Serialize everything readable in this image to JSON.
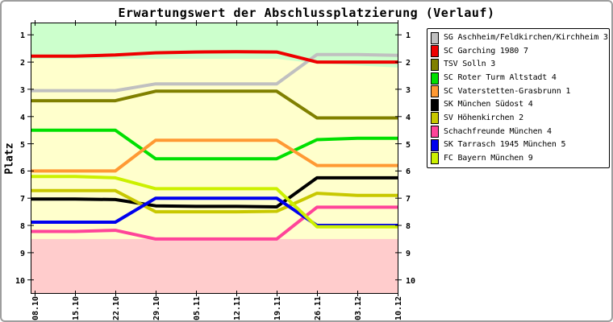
{
  "chart_data": {
    "type": "line",
    "title": "Erwartungswert der Abschlussplatzierung (Verlauf)",
    "ylabel": "Platz",
    "x": [
      "08.10",
      "15.10",
      "22.10",
      "29.10",
      "05.11",
      "12.11",
      "19.11",
      "26.11",
      "03.12",
      "10.12"
    ],
    "y_ticks": [
      1,
      2,
      3,
      4,
      5,
      6,
      7,
      8,
      9,
      10
    ],
    "ylim": [
      0.55,
      10.5
    ],
    "y_axis_inverted": true,
    "y_axis_mirrored_right": true,
    "grid": false,
    "legend_position": "outside-top-right",
    "axis_color": "#000000",
    "bands": {
      "top_zone_color": "#ccffcc",
      "middle_zone_color": "#ffffcc",
      "bottom_zone_color": "#ffcccc",
      "top_zone_lower_edge_by_x": [
        1.88,
        1.88,
        1.88,
        1.88,
        1.88,
        1.88,
        1.88,
        2.05,
        2.12,
        2.2
      ],
      "bottom_zone_upper_edge": 8.5
    },
    "series": [
      {
        "name": "SG Aschheim/Feldkirchen/Kirchheim 3",
        "color": "#c0c0c0",
        "values": [
          3.05,
          3.05,
          3.05,
          2.8,
          2.8,
          2.8,
          2.8,
          1.72,
          1.72,
          1.75
        ]
      },
      {
        "name": "SC Garching 1980 7",
        "color": "#ee0000",
        "values": [
          1.78,
          1.78,
          1.74,
          1.66,
          1.63,
          1.62,
          1.63,
          2.0,
          2.0,
          2.0
        ]
      },
      {
        "name": "TSV Solln 3",
        "color": "#808000",
        "values": [
          3.42,
          3.42,
          3.42,
          3.07,
          3.07,
          3.07,
          3.07,
          4.05,
          4.05,
          4.05
        ]
      },
      {
        "name": "SC Roter Turm Altstadt 4",
        "color": "#00e000",
        "values": [
          4.5,
          4.5,
          4.5,
          5.55,
          5.55,
          5.55,
          5.55,
          4.85,
          4.8,
          4.8
        ]
      },
      {
        "name": "SC Vaterstetten-Grasbrunn 1",
        "color": "#ff9933",
        "values": [
          6.0,
          6.0,
          6.0,
          4.87,
          4.87,
          4.87,
          4.87,
          5.8,
          5.8,
          5.8
        ]
      },
      {
        "name": "SK München Südost 4",
        "color": "#000000",
        "values": [
          7.03,
          7.03,
          7.05,
          7.28,
          7.3,
          7.3,
          7.32,
          6.25,
          6.25,
          6.25
        ]
      },
      {
        "name": "SV Höhenkirchen 2",
        "color": "#c8c800",
        "values": [
          6.72,
          6.72,
          6.72,
          7.5,
          7.5,
          7.5,
          7.48,
          6.82,
          6.9,
          6.9
        ]
      },
      {
        "name": "Schachfreunde München 4",
        "color": "#ff4499",
        "values": [
          8.22,
          8.22,
          8.18,
          8.5,
          8.5,
          8.5,
          8.5,
          7.33,
          7.33,
          7.33
        ]
      },
      {
        "name": "SK Tarrasch 1945 München 5",
        "color": "#0000ee",
        "values": [
          7.88,
          7.88,
          7.88,
          7.0,
          7.0,
          7.0,
          7.0,
          8.0,
          8.0,
          8.0
        ]
      },
      {
        "name": "FC Bayern München 9",
        "color": "#ccf000",
        "values": [
          6.2,
          6.2,
          6.25,
          6.65,
          6.65,
          6.65,
          6.65,
          8.05,
          8.05,
          8.05
        ]
      }
    ]
  }
}
